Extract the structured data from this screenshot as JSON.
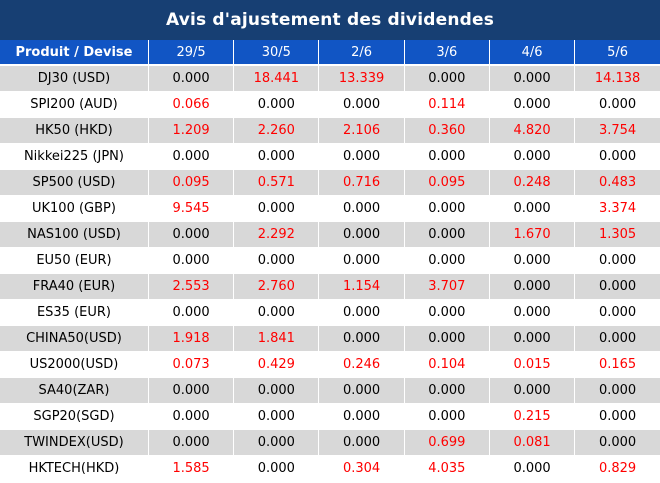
{
  "title": "Avis d'ajustement des dividendes",
  "header": {
    "product": "Produit / Devise",
    "dates": [
      "29/5",
      "30/5",
      "2/6",
      "3/6",
      "4/6",
      "5/6"
    ]
  },
  "colors": {
    "title_bg": "#173f73",
    "header_bg": "#1155c4",
    "highlight": "#ff0000",
    "stripe": "#d8d8d8"
  },
  "rows": [
    {
      "product": "DJ30 (USD)",
      "values": [
        "0.000",
        "18.441",
        "13.339",
        "0.000",
        "0.000",
        "14.138"
      ]
    },
    {
      "product": "SPI200 (AUD)",
      "values": [
        "0.066",
        "0.000",
        "0.000",
        "0.114",
        "0.000",
        "0.000"
      ]
    },
    {
      "product": "HK50 (HKD)",
      "values": [
        "1.209",
        "2.260",
        "2.106",
        "0.360",
        "4.820",
        "3.754"
      ]
    },
    {
      "product": "Nikkei225 (JPN)",
      "values": [
        "0.000",
        "0.000",
        "0.000",
        "0.000",
        "0.000",
        "0.000"
      ]
    },
    {
      "product": "SP500 (USD)",
      "values": [
        "0.095",
        "0.571",
        "0.716",
        "0.095",
        "0.248",
        "0.483"
      ]
    },
    {
      "product": "UK100 (GBP)",
      "values": [
        "9.545",
        "0.000",
        "0.000",
        "0.000",
        "0.000",
        "3.374"
      ]
    },
    {
      "product": "NAS100 (USD)",
      "values": [
        "0.000",
        "2.292",
        "0.000",
        "0.000",
        "1.670",
        "1.305"
      ]
    },
    {
      "product": "EU50 (EUR)",
      "values": [
        "0.000",
        "0.000",
        "0.000",
        "0.000",
        "0.000",
        "0.000"
      ]
    },
    {
      "product": "FRA40 (EUR)",
      "values": [
        "2.553",
        "2.760",
        "1.154",
        "3.707",
        "0.000",
        "0.000"
      ]
    },
    {
      "product": "ES35 (EUR)",
      "values": [
        "0.000",
        "0.000",
        "0.000",
        "0.000",
        "0.000",
        "0.000"
      ]
    },
    {
      "product": "CHINA50(USD)",
      "values": [
        "1.918",
        "1.841",
        "0.000",
        "0.000",
        "0.000",
        "0.000"
      ]
    },
    {
      "product": "US2000(USD)",
      "values": [
        "0.073",
        "0.429",
        "0.246",
        "0.104",
        "0.015",
        "0.165"
      ]
    },
    {
      "product": "SA40(ZAR)",
      "values": [
        "0.000",
        "0.000",
        "0.000",
        "0.000",
        "0.000",
        "0.000"
      ]
    },
    {
      "product": "SGP20(SGD)",
      "values": [
        "0.000",
        "0.000",
        "0.000",
        "0.000",
        "0.215",
        "0.000"
      ]
    },
    {
      "product": "TWINDEX(USD)",
      "values": [
        "0.000",
        "0.000",
        "0.000",
        "0.699",
        "0.081",
        "0.000"
      ]
    },
    {
      "product": "HKTECH(HKD)",
      "values": [
        "1.585",
        "0.000",
        "0.304",
        "4.035",
        "0.000",
        "0.829"
      ]
    }
  ]
}
